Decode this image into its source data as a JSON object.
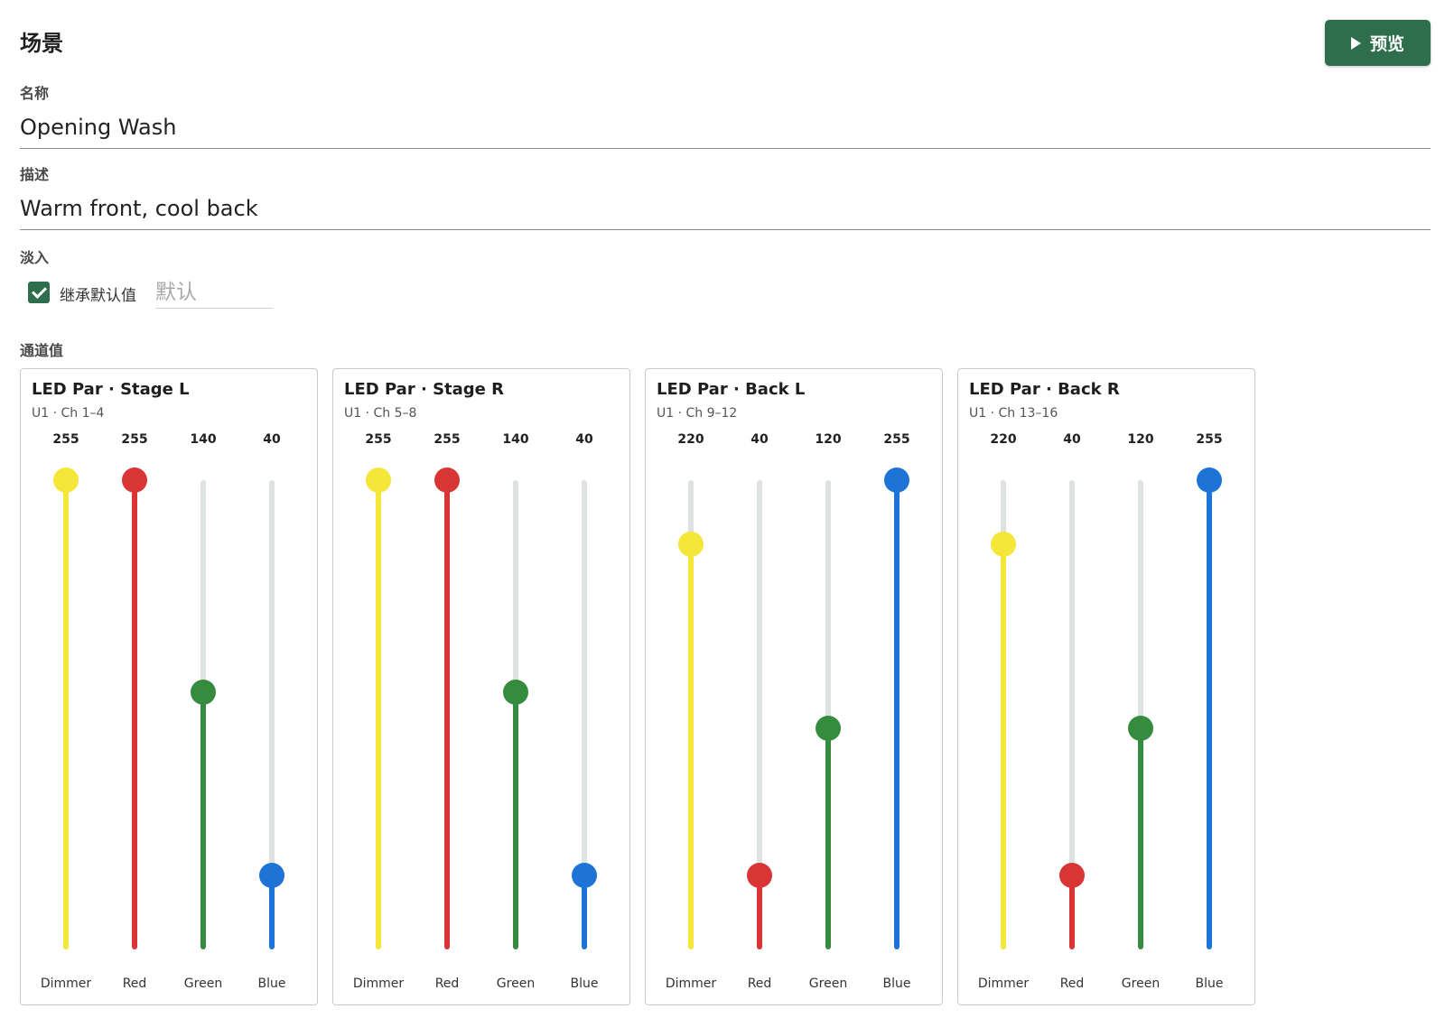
{
  "header": {
    "title": "场景",
    "preview_label": "预览"
  },
  "form": {
    "name_label": "名称",
    "name_value": "Opening Wash",
    "description_label": "描述",
    "description_value": "Warm front, cool back",
    "fade_label": "淡入",
    "inherit_label": "继承默认值",
    "inherit_checked": true,
    "fade_placeholder": "默认",
    "channels_label": "通道值"
  },
  "fixtures": [
    {
      "name": "LED Par · Stage L",
      "channels": "U1 · Ch 1–4",
      "faders": [
        {
          "label": "Dimmer",
          "value": 255,
          "color": "#f5e63a"
        },
        {
          "label": "Red",
          "value": 255,
          "color": "#d93535"
        },
        {
          "label": "Green",
          "value": 140,
          "color": "#368c3e"
        },
        {
          "label": "Blue",
          "value": 40,
          "color": "#1d74d6"
        }
      ]
    },
    {
      "name": "LED Par · Stage R",
      "channels": "U1 · Ch 5–8",
      "faders": [
        {
          "label": "Dimmer",
          "value": 255,
          "color": "#f5e63a"
        },
        {
          "label": "Red",
          "value": 255,
          "color": "#d93535"
        },
        {
          "label": "Green",
          "value": 140,
          "color": "#368c3e"
        },
        {
          "label": "Blue",
          "value": 40,
          "color": "#1d74d6"
        }
      ]
    },
    {
      "name": "LED Par · Back L",
      "channels": "U1 · Ch 9–12",
      "faders": [
        {
          "label": "Dimmer",
          "value": 220,
          "color": "#f5e63a"
        },
        {
          "label": "Red",
          "value": 40,
          "color": "#d93535"
        },
        {
          "label": "Green",
          "value": 120,
          "color": "#368c3e"
        },
        {
          "label": "Blue",
          "value": 255,
          "color": "#1d74d6"
        }
      ]
    },
    {
      "name": "LED Par · Back R",
      "channels": "U1 · Ch 13–16",
      "faders": [
        {
          "label": "Dimmer",
          "value": 220,
          "color": "#f5e63a"
        },
        {
          "label": "Red",
          "value": 40,
          "color": "#d93535"
        },
        {
          "label": "Green",
          "value": 120,
          "color": "#368c3e"
        },
        {
          "label": "Blue",
          "value": 255,
          "color": "#1d74d6"
        }
      ]
    }
  ]
}
